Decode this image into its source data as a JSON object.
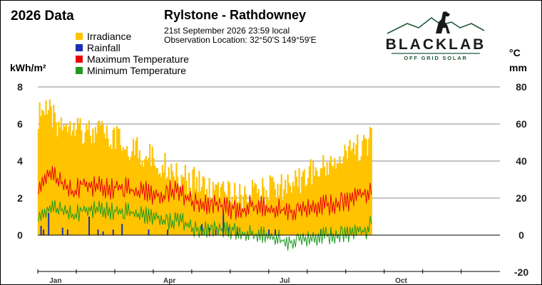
{
  "title": "2026 Data",
  "station": "Rylstone - Rathdowney",
  "observation_date": "21st September 2026  23:59 local",
  "observation_location": "Observation Location:   32°50'S 149°59'E",
  "logo": {
    "name": "BLACKLAB",
    "tagline": "OFF GRID SOLAR"
  },
  "axes": {
    "left_unit": "kWh/m²",
    "right_unit_temp": "°C",
    "right_unit_rain": "mm"
  },
  "colors": {
    "irradiance": "#ffc300",
    "rainfall": "#1a2fb4",
    "max_temp": "#e8000b",
    "min_temp": "#1f9a1f",
    "grid": "#888888"
  },
  "legend": [
    {
      "label": "Irradiance",
      "color": "#ffc300"
    },
    {
      "label": "Rainfall",
      "color": "#1a2fb4"
    },
    {
      "label": "Maximum Temperature",
      "color": "#e8000b"
    },
    {
      "label": "Minimum Temperature",
      "color": "#1f9a1f"
    }
  ],
  "chart_data": {
    "type": "bar",
    "x_unit": "day of year",
    "xlim": [
      1,
      365
    ],
    "x_ticks": [
      {
        "day": 15,
        "label": "Jan"
      },
      {
        "day": 105,
        "label": "Apr"
      },
      {
        "day": 196,
        "label": "Jul"
      },
      {
        "day": 288,
        "label": "Oct"
      }
    ],
    "y_left": {
      "label": "kWh/m²",
      "lim": [
        0,
        8
      ],
      "ticks": [
        0,
        2,
        4,
        6,
        8
      ]
    },
    "y_right": {
      "label": "°C / mm",
      "lim": [
        -20,
        80
      ],
      "ticks": [
        -20,
        0,
        20,
        40,
        60,
        80
      ]
    },
    "grid": true,
    "series": [
      {
        "name": "Irradiance",
        "axis": "left",
        "type": "bar",
        "days": [
          1,
          8,
          15,
          22,
          29,
          36,
          43,
          50,
          57,
          64,
          71,
          78,
          85,
          92,
          99,
          106,
          113,
          120,
          127,
          134,
          141,
          148,
          155,
          162,
          169,
          176,
          183,
          190,
          197,
          204,
          211,
          218,
          225,
          232,
          239,
          246,
          253,
          260,
          264
        ],
        "values": [
          7.2,
          7.6,
          6.8,
          6.9,
          7.0,
          6.5,
          6.2,
          6.4,
          6.0,
          5.9,
          5.6,
          5.4,
          5.1,
          5.0,
          4.6,
          4.4,
          4.1,
          3.8,
          3.6,
          3.4,
          3.1,
          3.0,
          2.9,
          2.9,
          3.0,
          3.1,
          3.2,
          3.4,
          3.5,
          3.7,
          3.9,
          4.2,
          4.4,
          4.7,
          4.9,
          5.2,
          5.5,
          5.8,
          5.9
        ]
      },
      {
        "name": "Rainfall",
        "axis": "right",
        "type": "bar",
        "days": [
          3,
          5,
          9,
          20,
          24,
          41,
          48,
          52,
          60,
          67,
          88,
          103,
          130,
          136,
          141,
          147,
          151,
          158,
          183,
          188,
          224,
          232
        ],
        "values": [
          5,
          3,
          12,
          4,
          3,
          10,
          3,
          2,
          3,
          6,
          3,
          3,
          6,
          4,
          3,
          12,
          4,
          4,
          3,
          3,
          3,
          2
        ]
      },
      {
        "name": "Maximum Temperature",
        "axis": "right",
        "type": "line",
        "days": [
          1,
          8,
          15,
          22,
          29,
          36,
          43,
          50,
          57,
          64,
          71,
          78,
          85,
          92,
          99,
          106,
          113,
          120,
          127,
          134,
          141,
          148,
          155,
          162,
          169,
          176,
          183,
          190,
          197,
          204,
          211,
          218,
          225,
          232,
          239,
          246,
          253,
          260,
          264
        ],
        "values": [
          30,
          36,
          34,
          29,
          26,
          31,
          29,
          30,
          27,
          30,
          28,
          26,
          27,
          25,
          24,
          28,
          27,
          22,
          20,
          20,
          21,
          18,
          17,
          17,
          19,
          19,
          17,
          17,
          16,
          16,
          17,
          18,
          19,
          19,
          21,
          21,
          24,
          26,
          29
        ]
      },
      {
        "name": "Minimum Temperature",
        "axis": "right",
        "type": "line",
        "days": [
          1,
          8,
          15,
          22,
          29,
          36,
          43,
          50,
          57,
          64,
          71,
          78,
          85,
          92,
          99,
          106,
          113,
          120,
          127,
          134,
          141,
          148,
          155,
          162,
          169,
          176,
          183,
          190,
          197,
          204,
          211,
          218,
          225,
          232,
          239,
          246,
          253,
          260,
          264
        ],
        "values": [
          14,
          16,
          17,
          15,
          13,
          16,
          16,
          17,
          15,
          16,
          15,
          14,
          13,
          13,
          11,
          10,
          12,
          7,
          5,
          6,
          7,
          5,
          5,
          4,
          3,
          3,
          2,
          1,
          -2,
          0,
          0,
          1,
          2,
          2,
          3,
          3,
          4,
          5,
          12
        ]
      }
    ]
  }
}
